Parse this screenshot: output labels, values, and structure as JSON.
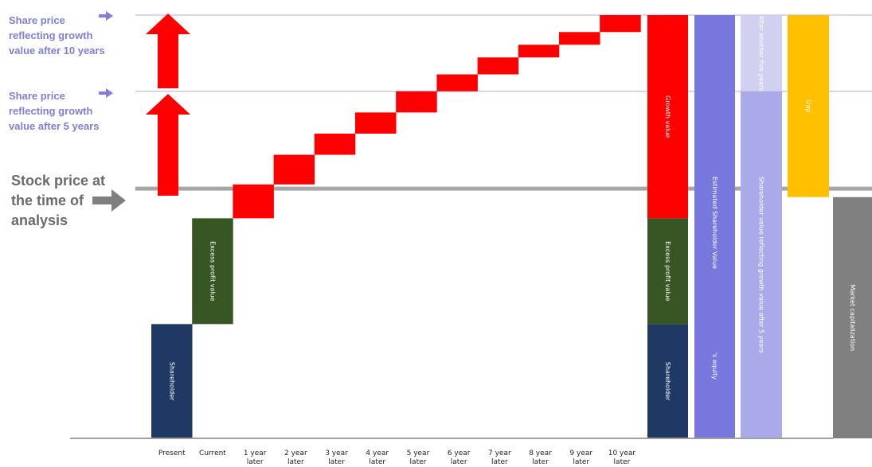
{
  "labels": {
    "price_10y": [
      "Share price",
      "reflecting growth",
      "value after 10 years"
    ],
    "price_5y": [
      "Share price",
      "reflecting growth",
      "value after 5 years"
    ],
    "stock_price": [
      "Stock price at",
      "the time of",
      "analysis"
    ]
  },
  "colors": {
    "shareholder": "#1f3864",
    "excess": "#375623",
    "growth": "#ff0000",
    "estimated": "#7777dd",
    "five_year": "#aaaae8",
    "another_five": "#d0d0f0",
    "gap": "#ffc000",
    "market_cap": "#808080",
    "label_blue": "#7f7fd9",
    "stock_line": "#a6a6a6"
  },
  "chart_data": {
    "type": "bar",
    "stock_price_level": 59,
    "price_5y_level": 82,
    "price_10y_level": 100,
    "categories": [
      "Present",
      "Current",
      "1 year later",
      "2 year later",
      "3 year later",
      "4 year later",
      "5 year later",
      "6 year later",
      "7 year later",
      "8 year later",
      "9 year later",
      "10 year later"
    ],
    "steps": [
      {
        "category": "Present",
        "bottom": 0,
        "top": 27,
        "label": "Shareholder",
        "color": "shareholder"
      },
      {
        "category": "Current",
        "bottom": 27,
        "top": 52,
        "label": "Excess profit value",
        "color": "excess"
      },
      {
        "category": "1 year later",
        "bottom": 52,
        "top": 60,
        "label": "",
        "color": "growth"
      },
      {
        "category": "2 year later",
        "bottom": 60,
        "top": 67,
        "label": "",
        "color": "growth"
      },
      {
        "category": "3 year later",
        "bottom": 67,
        "top": 72,
        "label": "",
        "color": "growth"
      },
      {
        "category": "4 year later",
        "bottom": 72,
        "top": 77,
        "label": "",
        "color": "growth"
      },
      {
        "category": "5 year later",
        "bottom": 77,
        "top": 82,
        "label": "",
        "color": "growth"
      },
      {
        "category": "6 year later",
        "bottom": 82,
        "top": 86,
        "label": "",
        "color": "growth"
      },
      {
        "category": "7 year later",
        "bottom": 86,
        "top": 90,
        "label": "",
        "color": "growth"
      },
      {
        "category": "8 year later",
        "bottom": 90,
        "top": 93,
        "label": "",
        "color": "growth"
      },
      {
        "category": "9 year later",
        "bottom": 93,
        "top": 96,
        "label": "",
        "color": "growth"
      },
      {
        "category": "10 year later",
        "bottom": 96,
        "top": 100,
        "label": "",
        "color": "growth"
      }
    ],
    "summary_bars": [
      {
        "segments": [
          {
            "bottom": 0,
            "top": 27,
            "label": "Shareholder",
            "color": "shareholder"
          },
          {
            "bottom": 27,
            "top": 52,
            "label": "Excess profit value",
            "color": "excess"
          },
          {
            "bottom": 52,
            "top": 100,
            "label": "Growth value",
            "color": "growth"
          }
        ]
      },
      {
        "segments": [
          {
            "bottom": 0,
            "top": 100,
            "label": "Estimated Shareholder Value",
            "color": "estimated"
          }
        ],
        "extra_label": "'s equity"
      },
      {
        "segments": [
          {
            "bottom": 0,
            "top": 82,
            "label": "Shareholder value reflecting growth value after 5 years",
            "color": "five_year"
          },
          {
            "bottom": 82,
            "top": 100,
            "label": "After another five years",
            "color": "another_five"
          }
        ]
      },
      {
        "segments": [
          {
            "bottom": 57,
            "top": 100,
            "label": "Gap",
            "color": "gap"
          }
        ]
      },
      {
        "segments": [
          {
            "bottom": 0,
            "top": 57,
            "label": "Market capitalization",
            "color": "market_cap"
          }
        ]
      }
    ]
  }
}
